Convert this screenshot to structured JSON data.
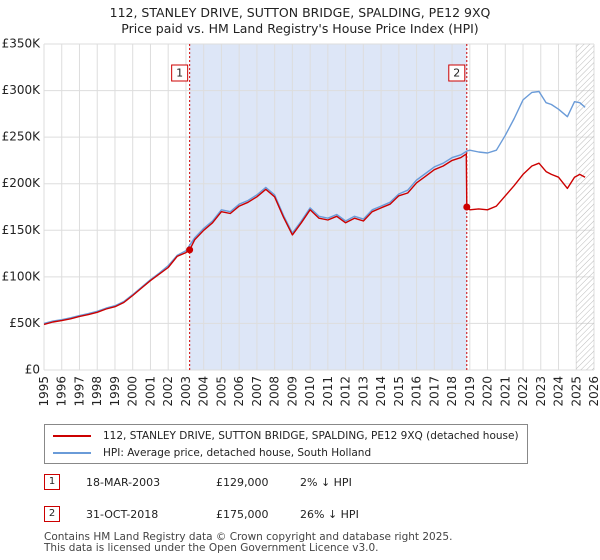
{
  "chart_data": {
    "type": "line",
    "title": "112, STANLEY DRIVE, SUTTON BRIDGE, SPALDING, PE12 9XQ",
    "subtitle": "Price paid vs. HM Land Registry's House Price Index (HPI)",
    "xlabel": "",
    "ylabel": "",
    "xlim": [
      1995,
      2026
    ],
    "ylim": [
      0,
      350000
    ],
    "x_ticks": [
      "1995",
      "1996",
      "1997",
      "1998",
      "1999",
      "2000",
      "2001",
      "2002",
      "2003",
      "2004",
      "2005",
      "2006",
      "2007",
      "2008",
      "2009",
      "2010",
      "2011",
      "2012",
      "2013",
      "2014",
      "2015",
      "2016",
      "2017",
      "2018",
      "2019",
      "2020",
      "2021",
      "2022",
      "2023",
      "2024",
      "2025",
      "2026"
    ],
    "y_ticks": [
      {
        "value": 0,
        "label": "£0"
      },
      {
        "value": 50000,
        "label": "£50K"
      },
      {
        "value": 100000,
        "label": "£100K"
      },
      {
        "value": 150000,
        "label": "£150K"
      },
      {
        "value": 200000,
        "label": "£200K"
      },
      {
        "value": 250000,
        "label": "£250K"
      },
      {
        "value": 300000,
        "label": "£300K"
      },
      {
        "value": 350000,
        "label": "£350K"
      }
    ],
    "grid": true,
    "shaded_period": [
      2003.21,
      2018.83
    ],
    "forecast_hatch_from": 2025.0,
    "colors": {
      "property": "#cc0000",
      "hpi": "#6a9bd8",
      "shade": "#dde6f7",
      "grid": "#dddddd",
      "marker_line": "#cc0000"
    },
    "series": [
      {
        "name": "112, STANLEY DRIVE, SUTTON BRIDGE, SPALDING, PE12 9XQ (detached house)",
        "color": "#cc0000",
        "x": [
          1995.0,
          1995.5,
          1996.0,
          1996.5,
          1997.0,
          1997.5,
          1998.0,
          1998.5,
          1999.0,
          1999.5,
          2000.0,
          2000.5,
          2001.0,
          2001.5,
          2002.0,
          2002.5,
          2003.0,
          2003.21,
          2003.5,
          2004.0,
          2004.5,
          2005.0,
          2005.5,
          2006.0,
          2006.5,
          2007.0,
          2007.5,
          2008.0,
          2008.5,
          2009.0,
          2009.5,
          2010.0,
          2010.5,
          2011.0,
          2011.5,
          2012.0,
          2012.5,
          2013.0,
          2013.5,
          2014.0,
          2014.5,
          2015.0,
          2015.5,
          2016.0,
          2016.5,
          2017.0,
          2017.5,
          2018.0,
          2018.5,
          2018.8,
          2018.83,
          2019.0,
          2019.5,
          2020.0,
          2020.5,
          2021.0,
          2021.5,
          2022.0,
          2022.5,
          2022.9,
          2023.3,
          2023.6,
          2024.0,
          2024.5,
          2024.9,
          2025.2,
          2025.5
        ],
        "values": [
          49000,
          51500,
          53000,
          55000,
          57500,
          59500,
          62000,
          65500,
          68000,
          72500,
          80000,
          88000,
          96000,
          103000,
          110000,
          122000,
          126000,
          129000,
          140000,
          150000,
          158000,
          170000,
          168000,
          176000,
          180000,
          186000,
          194000,
          186000,
          164000,
          145000,
          158000,
          172000,
          163000,
          161000,
          165000,
          158000,
          163000,
          160000,
          170000,
          174000,
          178000,
          187000,
          190000,
          201000,
          208000,
          215000,
          219000,
          225000,
          228000,
          232000,
          175000,
          172000,
          173000,
          172000,
          176000,
          187000,
          198000,
          210000,
          219000,
          222000,
          213000,
          210000,
          207000,
          195000,
          207000,
          210000,
          207000
        ]
      },
      {
        "name": "HPI: Average price, detached house, South Holland",
        "color": "#6a9bd8",
        "x": [
          1995.0,
          1995.5,
          1996.0,
          1996.5,
          1997.0,
          1997.5,
          1998.0,
          1998.5,
          1999.0,
          1999.5,
          2000.0,
          2000.5,
          2001.0,
          2001.5,
          2002.0,
          2002.5,
          2003.0,
          2003.5,
          2004.0,
          2004.5,
          2005.0,
          2005.5,
          2006.0,
          2006.5,
          2007.0,
          2007.5,
          2008.0,
          2008.5,
          2009.0,
          2009.5,
          2010.0,
          2010.5,
          2011.0,
          2011.5,
          2012.0,
          2012.5,
          2013.0,
          2013.5,
          2014.0,
          2014.5,
          2015.0,
          2015.5,
          2016.0,
          2016.5,
          2017.0,
          2017.5,
          2018.0,
          2018.5,
          2018.83,
          2019.0,
          2019.5,
          2020.0,
          2020.5,
          2021.0,
          2021.5,
          2022.0,
          2022.5,
          2022.9,
          2023.3,
          2023.6,
          2024.0,
          2024.5,
          2024.9,
          2025.2,
          2025.5
        ],
        "values": [
          50000,
          52500,
          54000,
          56000,
          58500,
          60500,
          63000,
          66500,
          69000,
          73500,
          81000,
          89000,
          97000,
          104000,
          112000,
          123000,
          128000,
          142000,
          152000,
          160000,
          172000,
          170000,
          178000,
          182000,
          188000,
          196000,
          188000,
          166000,
          147000,
          160000,
          174000,
          165000,
          163000,
          167000,
          160000,
          165000,
          162000,
          172000,
          176000,
          180000,
          189000,
          193000,
          204000,
          211000,
          218000,
          222000,
          228000,
          231000,
          235000,
          236000,
          234000,
          233000,
          236000,
          252000,
          270000,
          290000,
          298000,
          299000,
          287000,
          285000,
          280000,
          272000,
          288000,
          287000,
          282000
        ]
      }
    ],
    "annotations": [
      {
        "id": "1",
        "date": "18-MAR-2003",
        "x": 2003.21,
        "price": 129000,
        "price_label": "£129,000",
        "hpi_label": "2% ↓ HPI"
      },
      {
        "id": "2",
        "date": "31-OCT-2018",
        "x": 2018.83,
        "price": 175000,
        "price_label": "£175,000",
        "hpi_label": "26% ↓ HPI"
      }
    ]
  },
  "legend": {
    "property_label": "112, STANLEY DRIVE, SUTTON BRIDGE, SPALDING, PE12 9XQ (detached house)",
    "hpi_label": "HPI: Average price, detached house, South Holland"
  },
  "sales": [
    {
      "id": "1",
      "date": "18-MAR-2003",
      "price": "£129,000",
      "hpi": "2% ↓ HPI"
    },
    {
      "id": "2",
      "date": "31-OCT-2018",
      "price": "£175,000",
      "hpi": "26% ↓ HPI"
    }
  ],
  "footer": {
    "line1": "Contains HM Land Registry data © Crown copyright and database right 2025.",
    "line2": "This data is licensed under the Open Government Licence v3.0."
  }
}
